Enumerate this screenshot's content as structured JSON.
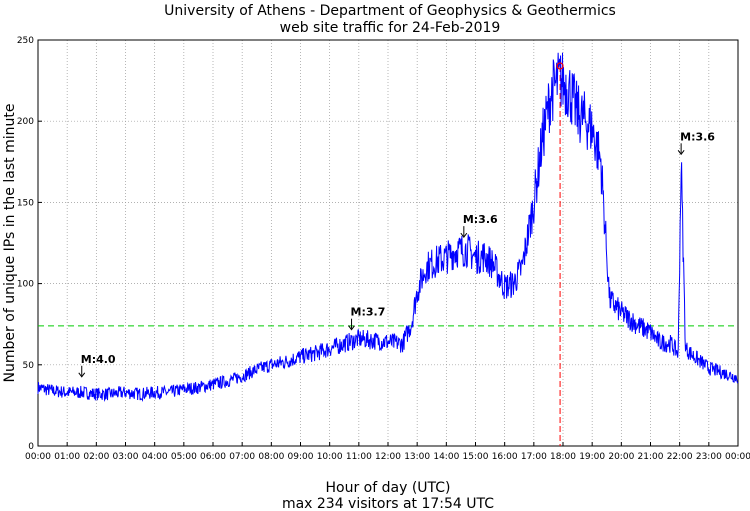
{
  "title_line1": "University of Athens - Department of Geophysics & Geothermics",
  "title_line2": "web site traffic for 24-Feb-2019",
  "xlabel": "Hour of day (UTC)",
  "footer": "max 234 visitors at 17:54 UTC",
  "ylabel": "Number of unique IPs in the last minute",
  "colors": {
    "line": "#0000ff",
    "average": "#00cc00",
    "marker": "#ff0000",
    "grid": "#999999"
  },
  "chart_data": {
    "type": "line",
    "xlim": [
      0,
      24
    ],
    "ylim": [
      0,
      250
    ],
    "x_ticks": [
      "00:00",
      "01:00",
      "02:00",
      "03:00",
      "04:00",
      "05:00",
      "06:00",
      "07:00",
      "08:00",
      "09:00",
      "10:00",
      "11:00",
      "12:00",
      "13:00",
      "14:00",
      "15:00",
      "16:00",
      "17:00",
      "18:00",
      "19:00",
      "20:00",
      "21:00",
      "22:00",
      "23:00",
      "00:00"
    ],
    "y_ticks": [
      0,
      50,
      100,
      150,
      200,
      250
    ],
    "grid": true,
    "series": [
      {
        "x": [
          0,
          0.5,
          1,
          1.5,
          2,
          2.5,
          3,
          3.5,
          4,
          4.5,
          5,
          5.5,
          6,
          6.5,
          7,
          7.5,
          8,
          8.5,
          9,
          9.5,
          10,
          10.5,
          11,
          11.5,
          12,
          12.5,
          12.8,
          13,
          13.3,
          13.7,
          14,
          14.3,
          14.7,
          15,
          15.3,
          15.6,
          16,
          16.3,
          16.6,
          17,
          17.3,
          17.6,
          17.9,
          18.2,
          18.5,
          18.8,
          19,
          19.3,
          19.6,
          20,
          20.3,
          20.6,
          21,
          21.3,
          21.7,
          21.95,
          22.05,
          22.2,
          22.5,
          23,
          23.5,
          24
        ],
        "y": [
          36,
          34,
          33,
          33,
          32,
          32,
          33,
          32,
          33,
          33,
          35,
          36,
          38,
          40,
          43,
          47,
          50,
          52,
          55,
          57,
          60,
          63,
          66,
          65,
          64,
          63,
          75,
          95,
          110,
          114,
          116,
          120,
          121,
          116,
          117,
          112,
          98,
          100,
          110,
          150,
          190,
          218,
          226,
          220,
          205,
          200,
          195,
          175,
          90,
          82,
          78,
          74,
          70,
          64,
          63,
          57,
          175,
          60,
          55,
          48,
          45,
          42
        ]
      }
    ],
    "average_line": 74,
    "max_marker": {
      "x": 17.9,
      "y": 234
    },
    "peak_vertical_line_x": 17.9,
    "annotations": [
      {
        "text": "M:4.0",
        "x": 1.5,
        "y": 42
      },
      {
        "text": "M:3.7",
        "x": 10.75,
        "y": 71
      },
      {
        "text": "M:3.6",
        "x": 14.6,
        "y": 128
      },
      {
        "text": "M:3.6",
        "x": 22.05,
        "y": 179
      }
    ]
  }
}
